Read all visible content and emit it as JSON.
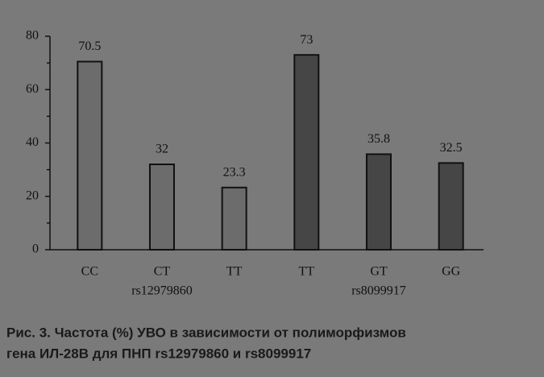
{
  "chart_data": {
    "type": "bar",
    "categories": [
      "CC",
      "CT",
      "TT",
      "TT",
      "GT",
      "GG"
    ],
    "values": [
      70.5,
      32,
      23.3,
      73,
      35.8,
      32.5
    ],
    "colors": [
      "#6c6c6c",
      "#6c6c6c",
      "#6c6c6c",
      "#464646",
      "#464646",
      "#464646"
    ],
    "group_labels": [
      "rs12979860",
      "rs8099917"
    ],
    "ylim": [
      0,
      80
    ],
    "yticks": [
      0,
      20,
      40,
      60,
      80
    ],
    "minor_yticks": [
      10,
      30,
      50,
      70
    ],
    "caption": [
      "Рис. 3. Частота (%) УВО в зависимости от полиморфизмов",
      "гена ИЛ-28В для ПНП rs12979860 и rs8099917"
    ]
  }
}
